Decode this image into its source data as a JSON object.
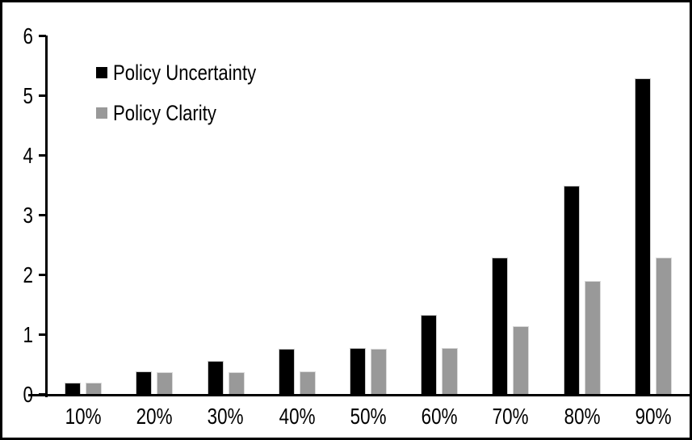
{
  "chart_data": {
    "type": "bar",
    "title": "",
    "xlabel": "",
    "ylabel": "",
    "categories": [
      "10%",
      "20%",
      "30%",
      "40%",
      "50%",
      "60%",
      "70%",
      "80%",
      "90%"
    ],
    "series": [
      {
        "name": "Policy Uncertainty",
        "color": "#000000",
        "values": [
          0.2,
          0.39,
          0.57,
          0.77,
          0.78,
          1.34,
          2.3,
          3.5,
          5.3
        ]
      },
      {
        "name": "Policy Clarity",
        "color": "#999999",
        "values": [
          0.2,
          0.38,
          0.38,
          0.39,
          0.77,
          0.78,
          1.15,
          1.9,
          2.3
        ]
      }
    ],
    "ylim": [
      0,
      6
    ],
    "yticks": [
      0,
      1,
      2,
      3,
      4,
      5,
      6
    ],
    "grid": false,
    "legend_position": "inside-top-left",
    "frame_border_color": "#000000",
    "background_color": "#ffffff"
  }
}
